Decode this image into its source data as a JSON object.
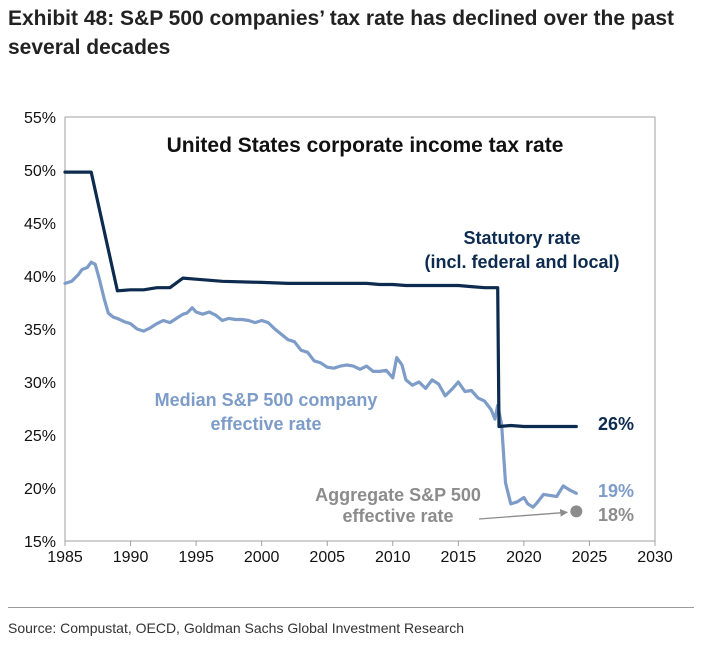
{
  "exhibit_title": "Exhibit 48: S&P 500 companies’ tax rate has declined over the past several decades",
  "source": "Source: Compustat, OECD, Goldman Sachs Global Investment Research",
  "colors": {
    "statutory": "#0d2b4f",
    "median": "#7d9cc8",
    "aggregate": "#8c8c8c",
    "frame": "#a0a0a0"
  },
  "chart_data": {
    "type": "line",
    "title": "United States corporate income tax rate",
    "xlim": [
      1985,
      2030
    ],
    "ylim": [
      15,
      55
    ],
    "x_ticks": [
      "1985",
      "1990",
      "1995",
      "2000",
      "2005",
      "2010",
      "2015",
      "2020",
      "2025",
      "2030"
    ],
    "y_ticks": [
      "15%",
      "20%",
      "25%",
      "30%",
      "35%",
      "40%",
      "45%",
      "50%",
      "55%"
    ],
    "grid": false,
    "series": [
      {
        "name": "Statutory rate (incl. federal and local)",
        "label_lines": [
          "Statutory rate",
          "(incl. federal and local)"
        ],
        "end_label": "26%",
        "color_key": "statutory",
        "x": [
          1985,
          1987,
          1989,
          1990,
          1991,
          1992,
          1993,
          1994,
          1995,
          1997,
          2000,
          2002,
          2004,
          2006,
          2008,
          2009,
          2010,
          2011,
          2013,
          2015,
          2016,
          2017,
          2018,
          2018.1,
          2019,
          2020,
          2021,
          2022,
          2023,
          2024
        ],
        "y": [
          49.8,
          49.8,
          38.6,
          38.7,
          38.7,
          38.9,
          38.9,
          39.8,
          39.7,
          39.5,
          39.4,
          39.3,
          39.3,
          39.3,
          39.3,
          39.2,
          39.2,
          39.1,
          39.1,
          39.1,
          39.0,
          38.9,
          38.9,
          25.8,
          25.9,
          25.8,
          25.8,
          25.8,
          25.8,
          25.8
        ]
      },
      {
        "name": "Median S&P 500 company effective rate",
        "label_lines": [
          "Median S&P 500 company",
          "effective rate"
        ],
        "end_label": "19%",
        "color_key": "median",
        "x": [
          1985,
          1985.5,
          1986,
          1986.3,
          1986.7,
          1987,
          1987.3,
          1987.6,
          1988,
          1988.3,
          1988.7,
          1989,
          1989.5,
          1990,
          1990.5,
          1991,
          1991.5,
          1992,
          1992.5,
          1993,
          1993.5,
          1994,
          1994.3,
          1994.7,
          1995,
          1995.5,
          1996,
          1996.5,
          1997,
          1997.5,
          1998,
          1998.5,
          1999,
          1999.5,
          2000,
          2000.5,
          2001,
          2001.5,
          2002,
          2002.5,
          2003,
          2003.5,
          2004,
          2004.5,
          2005,
          2005.5,
          2006,
          2006.5,
          2007,
          2007.5,
          2008,
          2008.5,
          2009,
          2009.5,
          2010,
          2010.3,
          2010.7,
          2011,
          2011.5,
          2012,
          2012.5,
          2013,
          2013.5,
          2014,
          2014.5,
          2015,
          2015.5,
          2016,
          2016.5,
          2017,
          2017.5,
          2017.8,
          2018,
          2018.3,
          2018.6,
          2019,
          2019.5,
          2020,
          2020.3,
          2020.7,
          2021,
          2021.5,
          2022,
          2022.5,
          2023,
          2023.5,
          2024
        ],
        "y": [
          39.3,
          39.5,
          40.1,
          40.6,
          40.8,
          41.3,
          41.1,
          39.8,
          37.8,
          36.5,
          36.1,
          36.0,
          35.7,
          35.5,
          35.0,
          34.8,
          35.1,
          35.5,
          35.8,
          35.6,
          36.0,
          36.4,
          36.5,
          37.0,
          36.6,
          36.4,
          36.6,
          36.3,
          35.8,
          36.0,
          35.9,
          35.9,
          35.8,
          35.6,
          35.8,
          35.6,
          35.0,
          34.5,
          34.0,
          33.8,
          33.0,
          32.8,
          32.0,
          31.8,
          31.4,
          31.3,
          31.5,
          31.6,
          31.5,
          31.2,
          31.5,
          31.0,
          31.0,
          31.1,
          30.4,
          32.3,
          31.6,
          30.2,
          29.7,
          30.0,
          29.4,
          30.2,
          29.8,
          28.7,
          29.3,
          30.0,
          29.1,
          29.2,
          28.5,
          28.2,
          27.4,
          26.5,
          27.8,
          26.0,
          20.5,
          18.5,
          18.7,
          19.1,
          18.5,
          18.2,
          18.6,
          19.4,
          19.3,
          19.2,
          20.2,
          19.8,
          19.5
        ]
      },
      {
        "name": "Aggregate S&P 500 effective rate",
        "label_lines": [
          "Aggregate S&P 500",
          "effective rate"
        ],
        "end_label": "18%",
        "color_key": "aggregate",
        "x": [
          2024
        ],
        "y": [
          17.8
        ]
      }
    ]
  }
}
